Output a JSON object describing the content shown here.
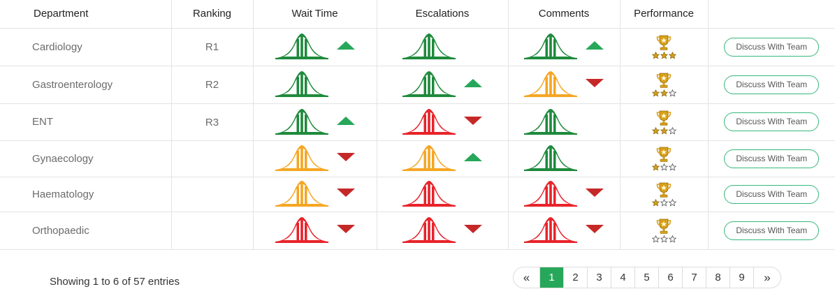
{
  "table": {
    "headers": {
      "department": "Department",
      "ranking": "Ranking",
      "wait_time": "Wait Time",
      "escalations": "Escalations",
      "comments": "Comments",
      "performance": "Performance",
      "action": ""
    },
    "rows": [
      {
        "department": "Cardiology",
        "ranking": "R1",
        "wait_time": {
          "status": "green",
          "trend": "up"
        },
        "escalations": {
          "status": "green",
          "trend": "none"
        },
        "comments": {
          "status": "green",
          "trend": "up"
        },
        "stars": 3,
        "action": "Discuss With Team"
      },
      {
        "department": "Gastroenterology",
        "ranking": "R2",
        "wait_time": {
          "status": "green",
          "trend": "none"
        },
        "escalations": {
          "status": "green",
          "trend": "up"
        },
        "comments": {
          "status": "orange",
          "trend": "down"
        },
        "stars": 2,
        "action": "Discuss With Team"
      },
      {
        "department": "ENT",
        "ranking": "R3",
        "wait_time": {
          "status": "green",
          "trend": "up"
        },
        "escalations": {
          "status": "red",
          "trend": "down"
        },
        "comments": {
          "status": "green",
          "trend": "none"
        },
        "stars": 2,
        "action": "Discuss With Team"
      },
      {
        "department": "Gynaecology",
        "ranking": "",
        "wait_time": {
          "status": "orange",
          "trend": "down"
        },
        "escalations": {
          "status": "orange",
          "trend": "up"
        },
        "comments": {
          "status": "green",
          "trend": "none"
        },
        "stars": 1,
        "action": "Discuss With Team"
      },
      {
        "department": "Haematology",
        "ranking": "",
        "wait_time": {
          "status": "orange",
          "trend": "down"
        },
        "escalations": {
          "status": "red",
          "trend": "none"
        },
        "comments": {
          "status": "red",
          "trend": "down"
        },
        "stars": 1,
        "action": "Discuss With Team"
      },
      {
        "department": "Orthopaedic",
        "ranking": "",
        "wait_time": {
          "status": "red",
          "trend": "down"
        },
        "escalations": {
          "status": "red",
          "trend": "down"
        },
        "comments": {
          "status": "red",
          "trend": "down"
        },
        "stars": 0,
        "action": "Discuss With Team"
      }
    ]
  },
  "icons": {
    "curve": "bell-curve-icon",
    "trend_up": "trend-up-icon",
    "trend_down": "trend-down-icon",
    "trophy": "trophy-icon",
    "star": "star-icon"
  },
  "colors": {
    "green": "#1e8a3c",
    "orange": "#f5a623",
    "red": "#e8232a",
    "trend_up": "#27a75a",
    "trend_down": "#c62828",
    "accent": "#27a75a",
    "button_border": "#35b87a",
    "trophy": "#d9a019"
  },
  "footer": {
    "info": "Showing 1 to 6 of 57 entries"
  },
  "pagination": {
    "prev": "«",
    "next": "»",
    "pages": [
      "1",
      "2",
      "3",
      "4",
      "5",
      "6",
      "7",
      "8",
      "9"
    ],
    "active": "1"
  }
}
